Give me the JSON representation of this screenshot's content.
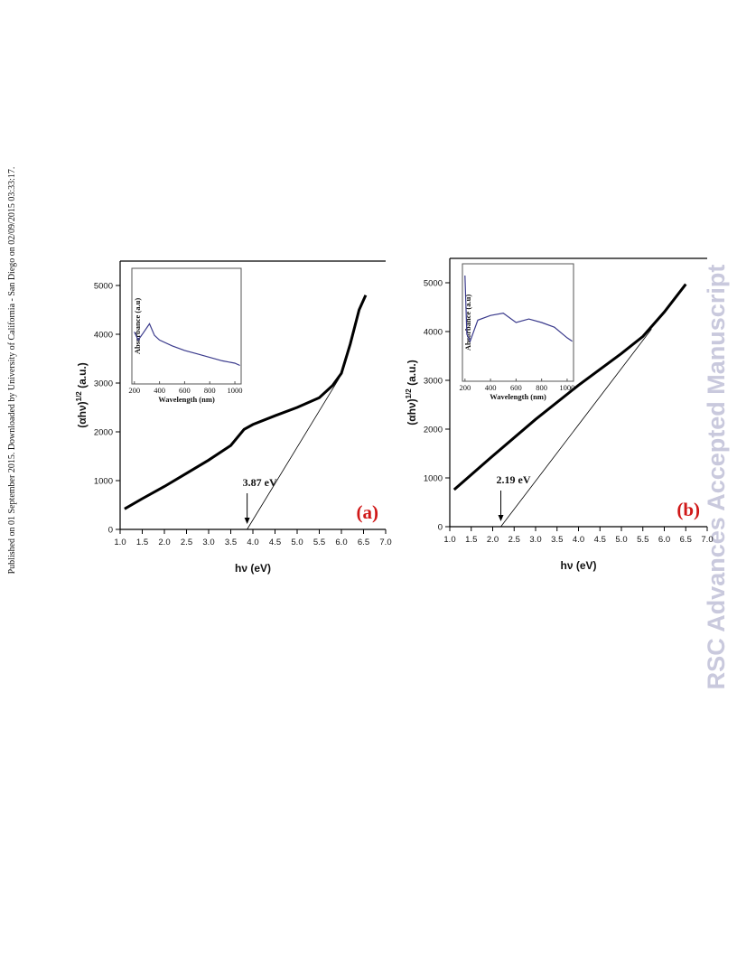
{
  "side_note": "Published on 01 September 2015. Downloaded by University of California - San Diego on 02/09/2015 03:33:17.",
  "watermark": "RSC Advances Accepted Manuscript",
  "chart_data": [
    {
      "type": "line",
      "panel_label": "(a)",
      "xlabel": "hν (eV)",
      "ylabel": [
        "(αhν)",
        "1/2",
        " (a.u.)"
      ],
      "x": [
        1.1,
        1.5,
        2.0,
        2.5,
        3.0,
        3.5,
        3.8,
        4.0,
        4.5,
        5.0,
        5.5,
        5.8,
        6.0,
        6.2,
        6.4,
        6.55
      ],
      "values": [
        420,
        630,
        880,
        1150,
        1420,
        1720,
        2050,
        2150,
        2330,
        2500,
        2700,
        2950,
        3200,
        3800,
        4500,
        4800
      ],
      "color": "#000000",
      "fit": {
        "x": [
          3.87,
          5.95
        ],
        "y": [
          0,
          3100
        ]
      },
      "annotation": {
        "text": "3.87 eV",
        "x": 3.87
      },
      "xlim": [
        1,
        7
      ],
      "ylim": [
        0,
        5500
      ],
      "xticks": [
        {
          "value": 1,
          "label": "1.0"
        },
        {
          "value": 1.5,
          "label": "1.5"
        },
        {
          "value": 2,
          "label": "2.0"
        },
        {
          "value": 2.5,
          "label": "2.5"
        },
        {
          "value": 3,
          "label": "3.0"
        },
        {
          "value": 3.5,
          "label": "3.5"
        },
        {
          "value": 4,
          "label": "4.0"
        },
        {
          "value": 4.5,
          "label": "4.5"
        },
        {
          "value": 5,
          "label": "5.0"
        },
        {
          "value": 5.5,
          "label": "5.5"
        },
        {
          "value": 6,
          "label": "6.0"
        },
        {
          "value": 6.5,
          "label": "6.5"
        },
        {
          "value": 7,
          "label": "7.0"
        }
      ],
      "yticks": [
        0,
        1000,
        2000,
        3000,
        4000,
        5000
      ],
      "inset": {
        "type": "line",
        "xlabel": "Wavelength (nm)",
        "ylabel": "Absorbance (a.u)",
        "x": [
          200,
          230,
          270,
          320,
          360,
          400,
          500,
          600,
          700,
          800,
          900,
          1000,
          1040
        ],
        "values": [
          0.45,
          0.38,
          0.44,
          0.52,
          0.42,
          0.38,
          0.33,
          0.29,
          0.26,
          0.23,
          0.2,
          0.18,
          0.16
        ],
        "color": "#3a3a8c",
        "xlim": [
          180,
          1050
        ],
        "ylim": [
          0,
          1
        ],
        "xticks": [
          200,
          400,
          600,
          800,
          1000
        ]
      }
    },
    {
      "type": "line",
      "panel_label": "(b)",
      "xlabel": "hν (eV)",
      "ylabel": [
        "(αhν)",
        "1/2",
        " (a.u.)"
      ],
      "x": [
        1.1,
        2.0,
        3.0,
        4.0,
        5.0,
        5.5,
        6.0,
        6.5
      ],
      "values": [
        760,
        1450,
        2200,
        2900,
        3550,
        3900,
        4400,
        4970
      ],
      "color": "#000000",
      "fit": {
        "x": [
          2.19,
          5.7
        ],
        "y": [
          0,
          4050
        ]
      },
      "annotation": {
        "text": "2.19 eV",
        "x": 2.19
      },
      "xlim": [
        1,
        7
      ],
      "ylim": [
        0,
        5500
      ],
      "xticks": [
        {
          "value": 1,
          "label": "1.0"
        },
        {
          "value": 1.5,
          "label": "1.5"
        },
        {
          "value": 2,
          "label": "2.0"
        },
        {
          "value": 2.5,
          "label": "2.5"
        },
        {
          "value": 3,
          "label": "3.0"
        },
        {
          "value": 3.5,
          "label": "3.5"
        },
        {
          "value": 4,
          "label": "4.0"
        },
        {
          "value": 4.5,
          "label": "4.5"
        },
        {
          "value": 5,
          "label": "5.0"
        },
        {
          "value": 5.5,
          "label": "5.5"
        },
        {
          "value": 6,
          "label": "6.0"
        },
        {
          "value": 6.5,
          "label": "6.5"
        },
        {
          "value": 7,
          "label": "7.0"
        }
      ],
      "yticks": [
        0,
        1000,
        2000,
        3000,
        4000,
        5000
      ],
      "inset": {
        "type": "line",
        "xlabel": "Wavelength (nm)",
        "ylabel": "Absorbance (a.u)",
        "x": [
          200,
          215,
          240,
          300,
          400,
          500,
          600,
          700,
          800,
          900,
          1000,
          1040
        ],
        "values": [
          0.9,
          0.4,
          0.34,
          0.52,
          0.56,
          0.58,
          0.5,
          0.53,
          0.5,
          0.46,
          0.37,
          0.34
        ],
        "color": "#3a3a8c",
        "xlim": [
          180,
          1050
        ],
        "ylim": [
          0,
          1
        ],
        "xticks": [
          200,
          400,
          600,
          800,
          1000
        ]
      }
    }
  ]
}
